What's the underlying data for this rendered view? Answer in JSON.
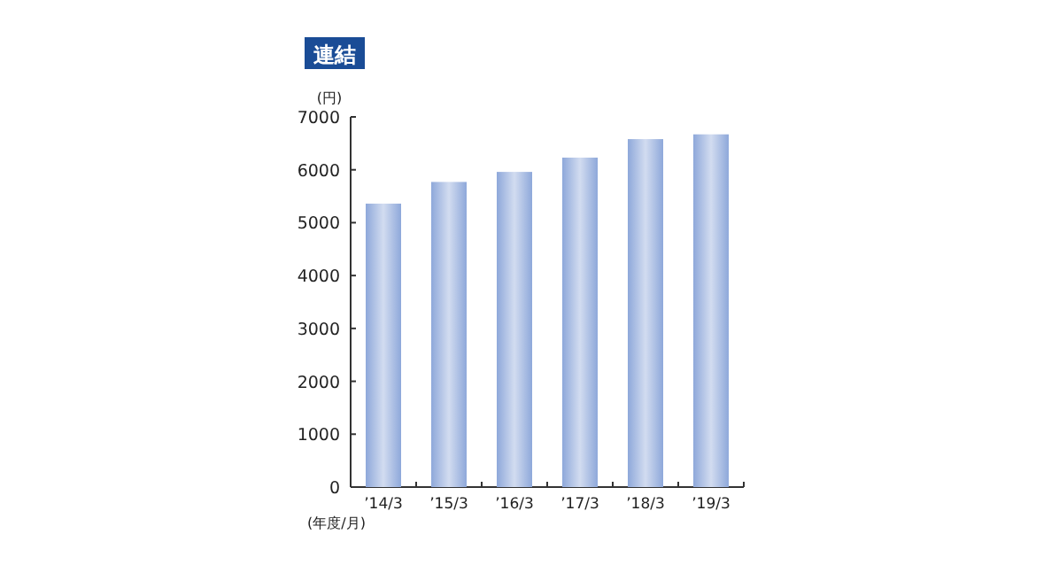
{
  "chart_data": {
    "type": "bar",
    "title": "連結",
    "ylabel": "(円)",
    "xlabel": "(年度/月)",
    "categories": [
      "’14/3",
      "’15/3",
      "’16/3",
      "’17/3",
      "’18/3",
      "’19/3"
    ],
    "values": [
      5360,
      5770,
      5960,
      6230,
      6580,
      6670
    ],
    "color": "#8ea8da",
    "ylim": [
      0,
      7000
    ],
    "yticks": [
      0,
      1000,
      2000,
      3000,
      4000,
      5000,
      6000,
      7000
    ],
    "grid": false
  }
}
